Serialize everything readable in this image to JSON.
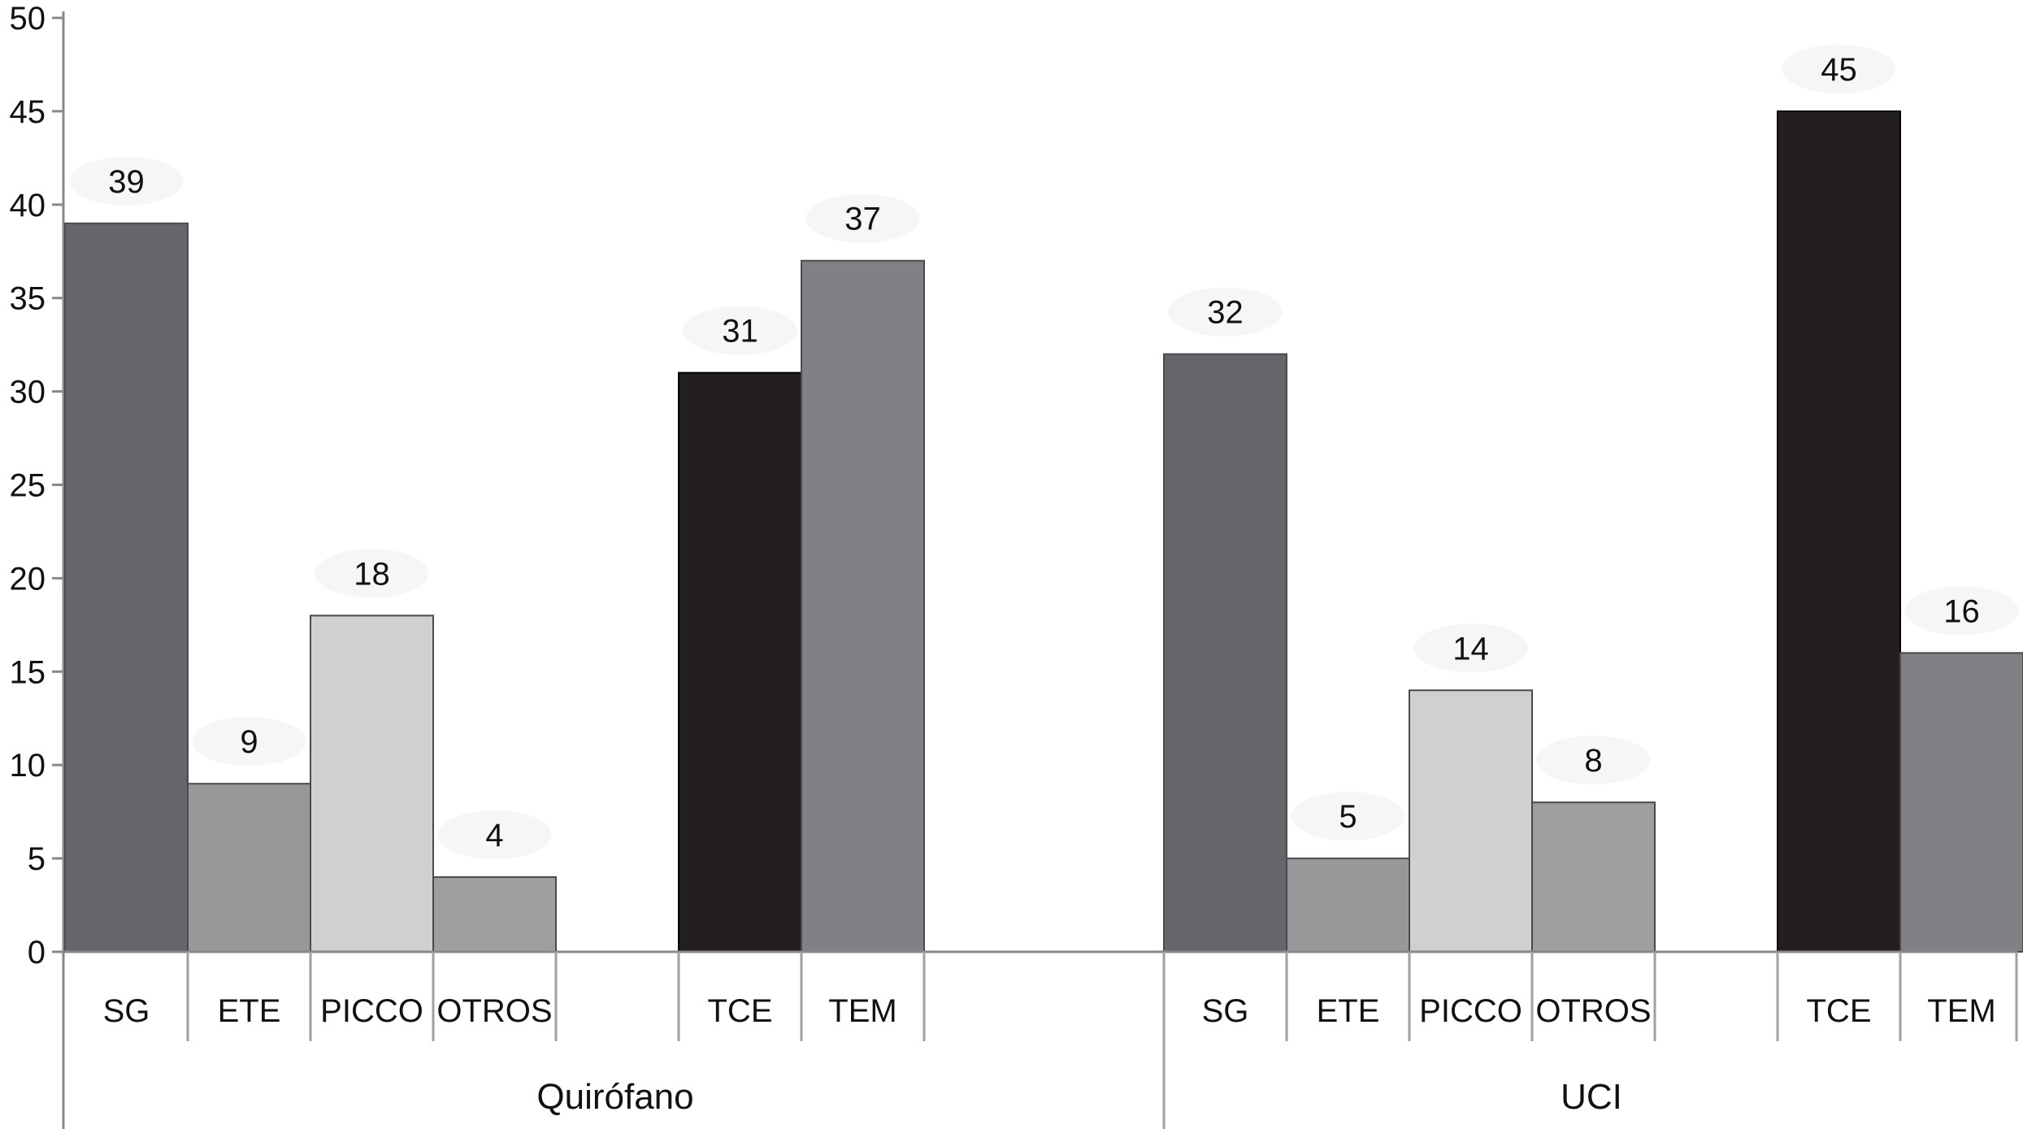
{
  "chart_data": {
    "type": "bar",
    "title": "",
    "xlabel": "",
    "ylabel": "",
    "ylim": [
      0,
      50
    ],
    "yticks": [
      0,
      5,
      10,
      15,
      20,
      25,
      30,
      35,
      40,
      45,
      50
    ],
    "grid": false,
    "legend": "none",
    "groups": [
      {
        "name": "Quirófano",
        "categories": [
          "SG",
          "ETE",
          "PICCO",
          "OTROS",
          "TCE",
          "TEM"
        ],
        "values": [
          39,
          9,
          18,
          4,
          31,
          37
        ]
      },
      {
        "name": "UCI",
        "categories": [
          "SG",
          "ETE",
          "PICCO",
          "OTROS",
          "TCE",
          "TEM"
        ],
        "values": [
          32,
          5,
          14,
          8,
          45,
          16
        ]
      }
    ],
    "category_colors": {
      "SG": "#65666a",
      "ETE": "#97989a",
      "PICCO": "#cfd0d2",
      "OTROS": "#9e9fa1",
      "TCE": "#231f20",
      "TEM": "#808184"
    }
  }
}
